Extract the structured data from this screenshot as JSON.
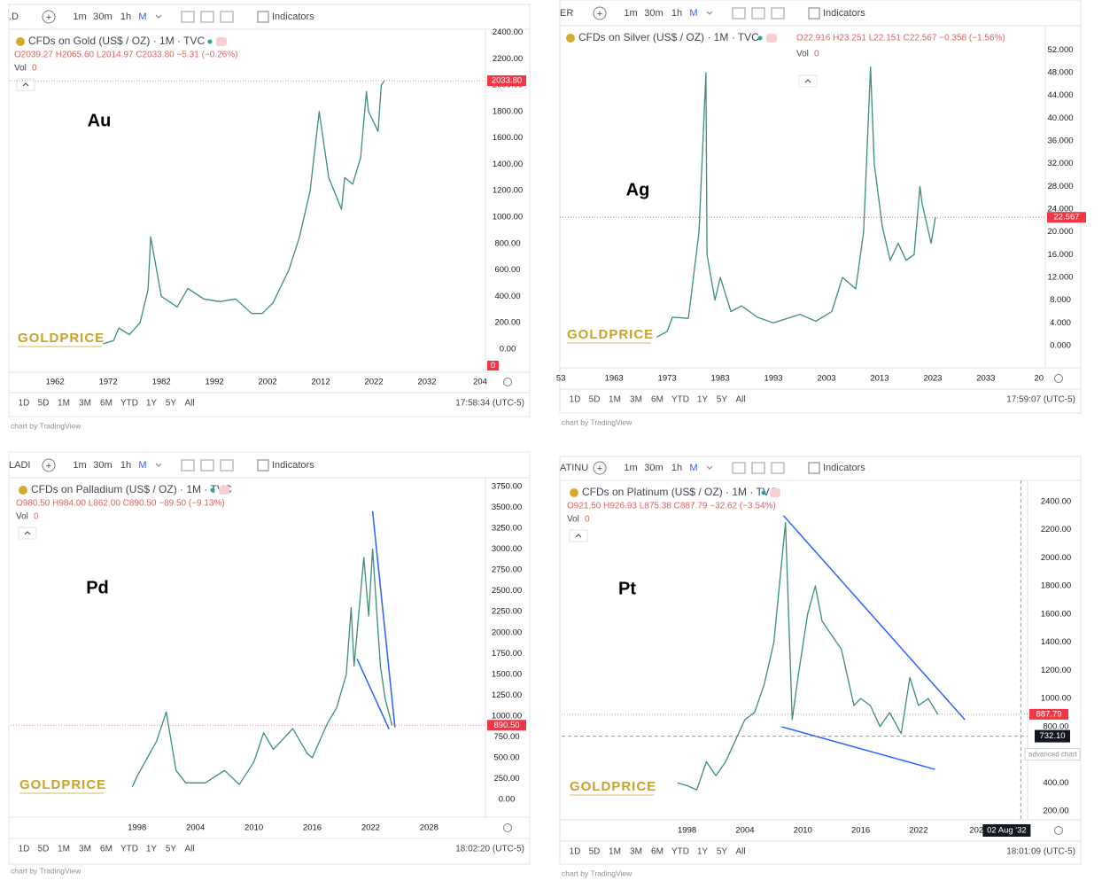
{
  "toolbar": [
    "1m",
    "30m",
    "1h",
    "M"
  ],
  "indicators": "Indicators",
  "ranges": [
    "1D",
    "5D",
    "1M",
    "3M",
    "6M",
    "YTD",
    "1Y",
    "5Y",
    "All"
  ],
  "vol_label": "Vol",
  "watermark": "GOLDPRICE",
  "footer": "chart by TradingView",
  "chart_data": [
    {
      "type": "line",
      "symbol": ".D",
      "title": "CFDs on Gold (US$ / OZ) · 1M · TVC",
      "ohlc": "O2039.27 H2065.60 L2014.97 C2033.80 −5.31 (−0.26%)",
      "volume": 0,
      "volume_marker": 0,
      "label": "Au",
      "color": "#3a8f74",
      "x": [
        1971,
        1973,
        1974,
        1976,
        1978,
        1979.5,
        1980,
        1982,
        1985,
        1987,
        1990,
        1993,
        1996,
        1999,
        2001,
        2003,
        2006,
        2008,
        2010,
        2011.7,
        2013.5,
        2015.9,
        2016.5,
        2018,
        2019.5,
        2020.6,
        2021,
        2022.8,
        2023.4,
        2024
      ],
      "values": [
        40,
        65,
        160,
        110,
        200,
        450,
        850,
        400,
        320,
        460,
        380,
        360,
        380,
        270,
        270,
        350,
        600,
        850,
        1200,
        1800,
        1300,
        1060,
        1300,
        1250,
        1450,
        1950,
        1800,
        1650,
        2000,
        2033.8
      ],
      "last_price": 2033.8,
      "last_price_label": "2033.80",
      "xlim": [
        1953.3,
        2043
      ],
      "xticks": [
        1962,
        1972,
        1982,
        1992,
        2002,
        2012,
        2022,
        2032,
        {
          "value": 2042,
          "label": "204"
        }
      ],
      "ylim": [
        -175,
        2410
      ],
      "yticks": [
        {
          "value": 0,
          "label": "0.00"
        },
        {
          "value": 200,
          "label": "200.00"
        },
        {
          "value": 400,
          "label": "400.00"
        },
        {
          "value": 600,
          "label": "600.00"
        },
        {
          "value": 800,
          "label": "800.00"
        },
        {
          "value": 1000,
          "label": "1000.00"
        },
        {
          "value": 1200,
          "label": "1200.00"
        },
        {
          "value": 1400,
          "label": "1400.00"
        },
        {
          "value": 1600,
          "label": "1600.00"
        },
        {
          "value": 1800,
          "label": "1800.00"
        },
        {
          "value": 2000,
          "label": "2000.00"
        },
        {
          "value": 2200,
          "label": "2200.00"
        },
        {
          "value": 2400,
          "label": "2400.00"
        }
      ],
      "timestamp": "17:58:34 (UTC-5)"
    },
    {
      "type": "line",
      "symbol": "ER",
      "title": "CFDs on Silver (US$ / OZ) · 1M · TVC",
      "ohlc": "O22.916 H23.251 L22.151 C22.567 −0.358 (−1.56%)",
      "volume": 0,
      "label": "Ag",
      "color": "#3a8f74",
      "x": [
        1971,
        1973,
        1974,
        1977,
        1979,
        1980.3,
        1980.5,
        1982,
        1983,
        1985,
        1987,
        1990,
        1993,
        1998,
        2001,
        2004,
        2006,
        2008.5,
        2010,
        2011.3,
        2012,
        2013.5,
        2015,
        2016.5,
        2018,
        2019.5,
        2020.6,
        2021,
        2022.7,
        2023.5
      ],
      "values": [
        1.5,
        2.5,
        5,
        4.8,
        20,
        48,
        16,
        8,
        12,
        6,
        7,
        5,
        4,
        5.5,
        4.3,
        6,
        12,
        10,
        20,
        49,
        32,
        21,
        15,
        18,
        15,
        16,
        28,
        25,
        18,
        22.567
      ],
      "last_price": 22.567,
      "last_price_label": "22.567",
      "xlim": [
        1952.8,
        2044.2
      ],
      "xticks": [
        {
          "value": 1953,
          "label": "53"
        },
        1963,
        1973,
        1983,
        1993,
        2003,
        2013,
        2023,
        2033,
        {
          "value": 2043,
          "label": "20"
        }
      ],
      "ylim": [
        -3.9,
        56.1
      ],
      "yticks": [
        {
          "value": 0,
          "label": "0.000"
        },
        {
          "value": 4,
          "label": "4.000"
        },
        {
          "value": 8,
          "label": "8.000"
        },
        {
          "value": 12,
          "label": "12.000"
        },
        {
          "value": 16,
          "label": "16.000"
        },
        {
          "value": 20,
          "label": "20.000"
        },
        {
          "value": 24,
          "label": "24.000"
        },
        {
          "value": 28,
          "label": "28.000"
        },
        {
          "value": 32,
          "label": "32.000"
        },
        {
          "value": 36,
          "label": "36.000"
        },
        {
          "value": 40,
          "label": "40.000"
        },
        {
          "value": 44,
          "label": "44.000"
        },
        {
          "value": 48,
          "label": "48.000"
        },
        {
          "value": 52,
          "label": "52.000"
        }
      ],
      "timestamp": "17:59:07 (UTC-5)"
    },
    {
      "type": "line",
      "symbol": "LADI",
      "title": "CFDs on Palladium (US$ / OZ) · 1M · TVC",
      "ohlc": "O980.50 H984.00 L862.00 C890.50 −89.50 (−9.13%)",
      "volume": 0,
      "label": "Pd",
      "color": "#3a8f74",
      "x": [
        1997.5,
        1998,
        2000,
        2001,
        2002,
        2003,
        2005,
        2007,
        2008.5,
        2010,
        2011,
        2012,
        2014,
        2015.5,
        2016,
        2017.5,
        2018.5,
        2019.5,
        2020,
        2020.3,
        2021.3,
        2021.8,
        2022.2,
        2023,
        2023.5,
        2024.2
      ],
      "values": [
        150,
        280,
        700,
        1050,
        350,
        200,
        200,
        350,
        180,
        450,
        800,
        600,
        850,
        550,
        500,
        900,
        1100,
        1500,
        2300,
        1600,
        2900,
        2200,
        3000,
        1600,
        1200,
        890.5
      ],
      "trendlines": [
        {
          "x": [
            2020.6,
            2023.9
          ],
          "y": [
            1686,
            843
          ]
        },
        {
          "x": [
            2022.2,
            2024.5
          ],
          "y": [
            3456,
            864
          ]
        }
      ],
      "trend_color": "#2962ff",
      "last_price": 890.5,
      "last_price_label": "890.50",
      "xlim": [
        1985,
        2033.8
      ],
      "xticks": [
        1998,
        2004,
        2010,
        2016,
        2022,
        2028
      ],
      "ylim": [
        -211,
        3845
      ],
      "yticks": [
        {
          "value": 0,
          "label": "0.00"
        },
        {
          "value": 250,
          "label": "250.00"
        },
        {
          "value": 500,
          "label": "500.00"
        },
        {
          "value": 750,
          "label": "750.00"
        },
        {
          "value": 1000,
          "label": "1000.00"
        },
        {
          "value": 1250,
          "label": "1250.00"
        },
        {
          "value": 1500,
          "label": "1500.00"
        },
        {
          "value": 1750,
          "label": "1750.00"
        },
        {
          "value": 2000,
          "label": "2000.00"
        },
        {
          "value": 2250,
          "label": "2250.00"
        },
        {
          "value": 2500,
          "label": "2500.00"
        },
        {
          "value": 2750,
          "label": "2750.00"
        },
        {
          "value": 3000,
          "label": "3000.00"
        },
        {
          "value": 3250,
          "label": "3250.00"
        },
        {
          "value": 3500,
          "label": "3500.00"
        },
        {
          "value": 3750,
          "label": "3750.00"
        }
      ],
      "timestamp": "18:02:20 (UTC-5)"
    },
    {
      "type": "line",
      "symbol": "ATINU",
      "title": "CFDs on Platinum (US$ / OZ) · 1M · TVC",
      "ohlc": "O921.50 H926.93 L875.38 C887.79 −32.62 (−3.54%)",
      "volume": 0,
      "label": "Pt",
      "color": "#3a8f74",
      "x": [
        1997,
        1998,
        1999,
        2000,
        2001,
        2002,
        2003,
        2004,
        2005,
        2006,
        2007,
        2008.2,
        2008.9,
        2009.5,
        2010.5,
        2011.3,
        2012,
        2013,
        2014,
        2015.3,
        2016,
        2017,
        2018,
        2019,
        2020.2,
        2021.1,
        2022,
        2023,
        2024
      ],
      "values": [
        400,
        380,
        350,
        550,
        450,
        550,
        700,
        850,
        900,
        1100,
        1400,
        2250,
        850,
        1150,
        1600,
        1800,
        1550,
        1450,
        1350,
        950,
        1000,
        950,
        800,
        900,
        750,
        1150,
        950,
        1000,
        887.79
      ],
      "trendlines": [
        {
          "x": [
            2008,
            2026.8
          ],
          "y": [
            2300,
            849
          ]
        },
        {
          "x": [
            2007.8,
            2023.7
          ],
          "y": [
            799,
            496
          ]
        }
      ],
      "trend_color": "#2962ff",
      "last_price": 887.79,
      "last_price_label": "887.79",
      "crosshair_price": 732.1,
      "crosshair_price_label": "732.10",
      "crosshair_x": 2032.6,
      "crosshair_date": "02 Aug '32",
      "note": "advanced chart",
      "xlim": [
        1985,
        2033.3
      ],
      "xticks": [
        1998,
        2004,
        2010,
        2016,
        2022,
        {
          "value": 2028,
          "label": "202"
        }
      ],
      "ylim": [
        137,
        2532
      ],
      "yticks": [
        {
          "value": 200,
          "label": "200.00"
        },
        {
          "value": 400,
          "label": "400.00"
        },
        {
          "value": 800,
          "label": "800.00"
        },
        {
          "value": 1000,
          "label": "1000.00"
        },
        {
          "value": 1200,
          "label": "1200.00"
        },
        {
          "value": 1400,
          "label": "1400.00"
        },
        {
          "value": 1600,
          "label": "1600.00"
        },
        {
          "value": 1800,
          "label": "1800.00"
        },
        {
          "value": 2000,
          "label": "2000.00"
        },
        {
          "value": 2200,
          "label": "2200.00"
        },
        {
          "value": 2400,
          "label": "2400.00"
        }
      ],
      "timestamp": "18:01:09 (UTC-5)"
    }
  ]
}
